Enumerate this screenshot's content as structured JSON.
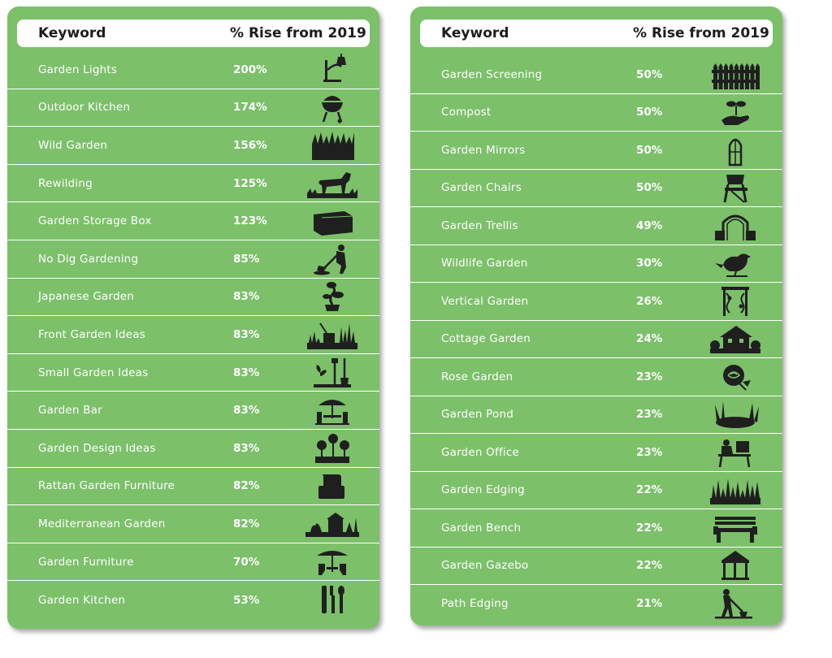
{
  "left_table": {
    "header_keyword": "Keyword",
    "header_rise": "% Rise from 2019",
    "rows": [
      {
        "keyword": "Garden Lights",
        "rise": "200%",
        "icon": "lamp-icon"
      },
      {
        "keyword": "Outdoor Kitchen",
        "rise": "174%",
        "icon": "bbq-grill-icon"
      },
      {
        "keyword": "Wild Garden",
        "rise": "156%",
        "icon": "tall-grass-icon"
      },
      {
        "keyword": "Rewilding",
        "rise": "125%",
        "icon": "pony-icon"
      },
      {
        "keyword": "Garden Storage Box",
        "rise": "123%",
        "icon": "storage-box-icon"
      },
      {
        "keyword": "No Dig Gardening",
        "rise": "85%",
        "icon": "gardener-digging-icon"
      },
      {
        "keyword": "Japanese Garden",
        "rise": "83%",
        "icon": "bonsai-icon"
      },
      {
        "keyword": "Front Garden Ideas",
        "rise": "83%",
        "icon": "front-garden-icon"
      },
      {
        "keyword": "Small Garden Ideas",
        "rise": "83%",
        "icon": "garden-tools-icon"
      },
      {
        "keyword": "Garden Bar",
        "rise": "83%",
        "icon": "parasol-table-icon"
      },
      {
        "keyword": "Garden Design Ideas",
        "rise": "83%",
        "icon": "flower-bed-icon"
      },
      {
        "keyword": "Rattan Garden Furniture",
        "rise": "82%",
        "icon": "armchair-icon"
      },
      {
        "keyword": "Mediterranean Garden",
        "rise": "82%",
        "icon": "mediterranean-scene-icon"
      },
      {
        "keyword": "Garden Furniture",
        "rise": "70%",
        "icon": "parasol-chairs-icon"
      },
      {
        "keyword": "Garden Kitchen",
        "rise": "53%",
        "icon": "kitchen-utensils-icon"
      }
    ]
  },
  "right_table": {
    "header_keyword": "Keyword",
    "header_rise": "% Rise from 2019",
    "rows": [
      {
        "keyword": "Garden Screening",
        "rise": "50%",
        "icon": "fence-icon"
      },
      {
        "keyword": "Compost",
        "rise": "50%",
        "icon": "hand-sprout-icon"
      },
      {
        "keyword": "Garden Mirrors",
        "rise": "50%",
        "icon": "arched-mirror-icon"
      },
      {
        "keyword": "Garden Chairs",
        "rise": "50%",
        "icon": "folding-chair-icon"
      },
      {
        "keyword": "Garden Trellis",
        "rise": "49%",
        "icon": "trellis-arch-icon"
      },
      {
        "keyword": "Wildlife Garden",
        "rise": "30%",
        "icon": "bird-icon"
      },
      {
        "keyword": "Vertical Garden",
        "rise": "26%",
        "icon": "climbing-frame-icon"
      },
      {
        "keyword": "Cottage Garden",
        "rise": "24%",
        "icon": "cottage-icon"
      },
      {
        "keyword": "Rose Garden",
        "rise": "23%",
        "icon": "rose-icon"
      },
      {
        "keyword": "Garden Pond",
        "rise": "23%",
        "icon": "pond-icon"
      },
      {
        "keyword": "Garden Office",
        "rise": "23%",
        "icon": "desk-worker-icon"
      },
      {
        "keyword": "Garden Edging",
        "rise": "22%",
        "icon": "grass-edge-icon"
      },
      {
        "keyword": "Garden Bench",
        "rise": "22%",
        "icon": "bench-icon"
      },
      {
        "keyword": "Garden Gazebo",
        "rise": "22%",
        "icon": "gazebo-icon"
      },
      {
        "keyword": "Path Edging",
        "rise": "21%",
        "icon": "edger-worker-icon"
      }
    ]
  },
  "colors": {
    "panel_green": "#7cc06a",
    "icon_dark": "#1f1f1f",
    "text_white": "#ffffff"
  }
}
